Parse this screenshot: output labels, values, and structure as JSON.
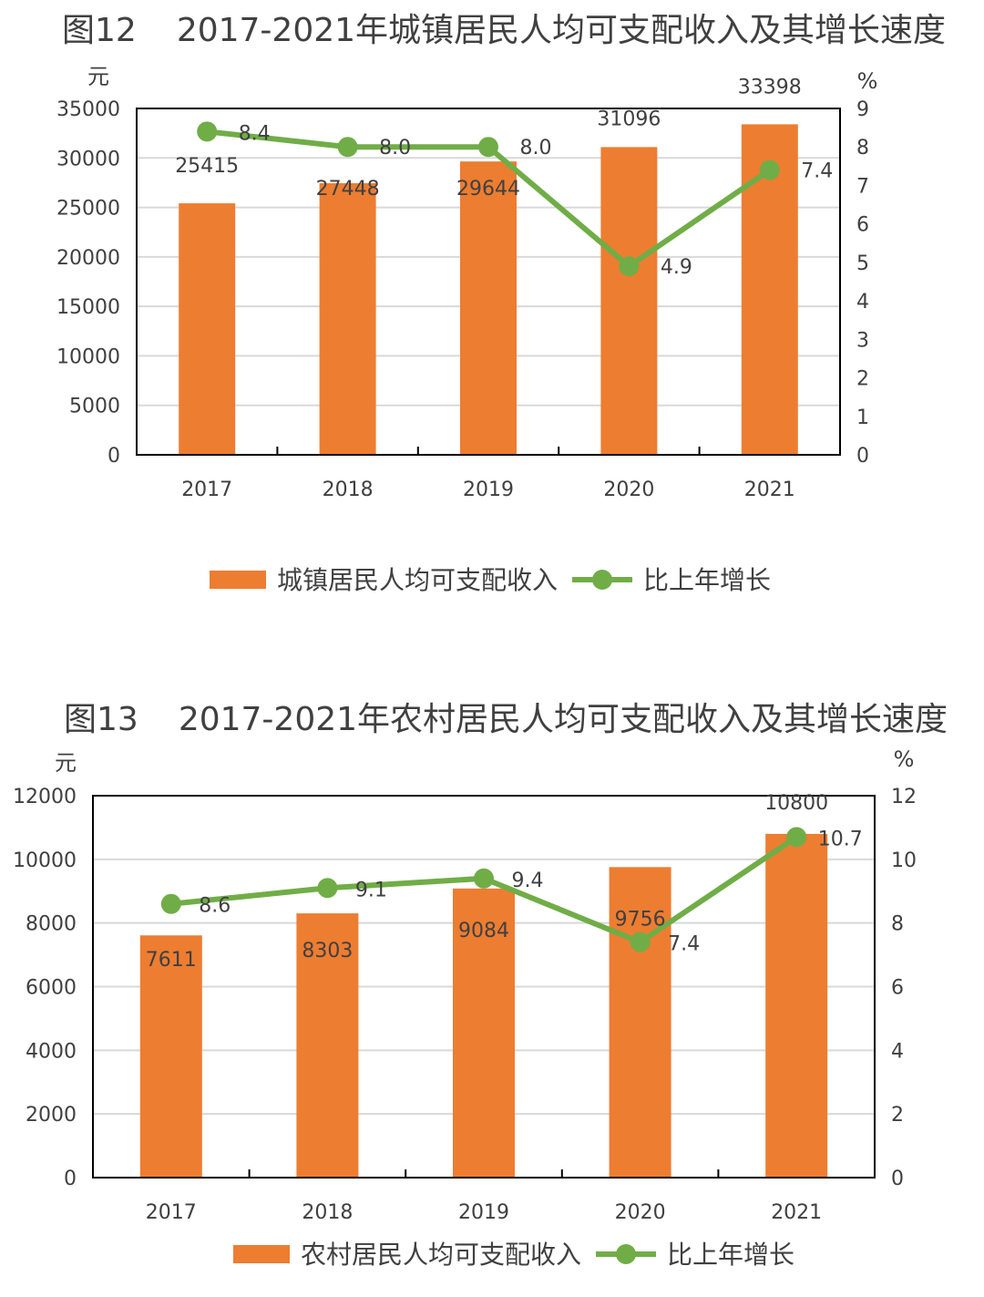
{
  "chart_data": [
    {
      "type": "bar+line",
      "title_num": "图12",
      "title": "2017-2021年城镇居民人均可支配收入及其增长速度",
      "ylabel_left": "元",
      "ylabel_right": "%",
      "categories": [
        "2017",
        "2018",
        "2019",
        "2020",
        "2021"
      ],
      "series": [
        {
          "name": "城镇居民人均可支配收入",
          "type": "bar",
          "axis": "left",
          "values": [
            25415,
            27448,
            29644,
            31096,
            33398
          ],
          "color": "#ED7D31"
        },
        {
          "name": "比上年增长",
          "type": "line",
          "axis": "right",
          "values": [
            8.4,
            8.0,
            8.0,
            4.9,
            7.4
          ],
          "value_labels": [
            "8.4",
            "8.0",
            "8.0",
            "4.9",
            "7.4"
          ],
          "color": "#70AD47"
        }
      ],
      "ylim_left": [
        0,
        35000
      ],
      "yticks_left": [
        0,
        5000,
        10000,
        15000,
        20000,
        25000,
        30000,
        35000
      ],
      "ylim_right": [
        0,
        9
      ],
      "yticks_right": [
        0,
        1,
        2,
        3,
        4,
        5,
        6,
        7,
        8,
        9
      ],
      "grid": true,
      "legend": "bottom"
    },
    {
      "type": "bar+line",
      "title_num": "图13",
      "title": "2017-2021年农村居民人均可支配收入及其增长速度",
      "ylabel_left": "元",
      "ylabel_right": "%",
      "categories": [
        "2017",
        "2018",
        "2019",
        "2020",
        "2021"
      ],
      "series": [
        {
          "name": "农村居民人均可支配收入",
          "type": "bar",
          "axis": "left",
          "values": [
            7611,
            8303,
            9084,
            9756,
            10800
          ],
          "color": "#ED7D31"
        },
        {
          "name": "比上年增长",
          "type": "line",
          "axis": "right",
          "values": [
            8.6,
            9.1,
            9.4,
            7.4,
            10.7
          ],
          "value_labels": [
            "8.6",
            "9.1",
            "9.4",
            "7.4",
            "10.7"
          ],
          "color": "#70AD47"
        }
      ],
      "ylim_left": [
        0,
        12000
      ],
      "yticks_left": [
        0,
        2000,
        4000,
        6000,
        8000,
        10000,
        12000
      ],
      "ylim_right": [
        0,
        12
      ],
      "yticks_right": [
        0,
        2,
        4,
        6,
        8,
        10,
        12
      ],
      "grid": true,
      "legend": "bottom"
    }
  ]
}
